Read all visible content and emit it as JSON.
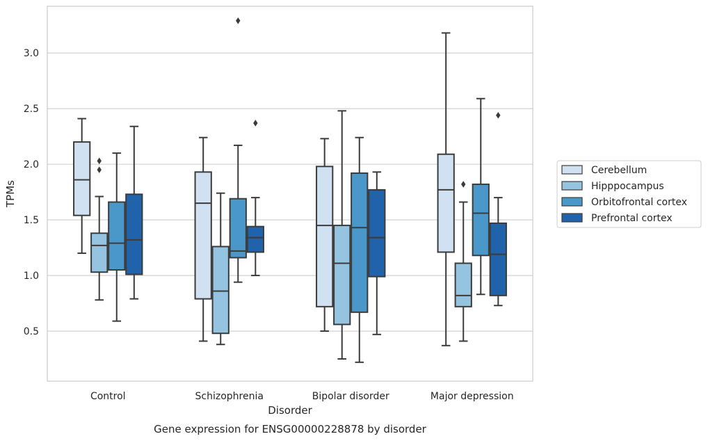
{
  "chart_data": {
    "type": "box",
    "title": "",
    "caption": "Gene expression for ENSG00000228878 by disorder",
    "xlabel": "Disorder",
    "ylabel": "TPMs",
    "ylim": [
      0.05,
      3.42
    ],
    "yticks": [
      0.5,
      1.0,
      1.5,
      2.0,
      2.5,
      3.0
    ],
    "ytick_labels": [
      "0.5",
      "1.0",
      "1.5",
      "2.0",
      "2.5",
      "3.0"
    ],
    "grid": "horizontal",
    "legend_position": "right",
    "categories": [
      "Control",
      "Schizophrenia",
      "Bipolar disorder",
      "Major depression"
    ],
    "series": [
      {
        "name": "Cerebellum",
        "color": "#d0e1f2",
        "boxes": [
          {
            "whislo": 1.2,
            "q1": 1.54,
            "med": 1.86,
            "q3": 2.2,
            "whishi": 2.41,
            "fliers": []
          },
          {
            "whislo": 0.41,
            "q1": 0.79,
            "med": 1.65,
            "q3": 1.93,
            "whishi": 2.24,
            "fliers": []
          },
          {
            "whislo": 0.5,
            "q1": 0.72,
            "med": 1.45,
            "q3": 1.98,
            "whishi": 2.23,
            "fliers": []
          },
          {
            "whislo": 0.37,
            "q1": 1.21,
            "med": 1.77,
            "q3": 2.09,
            "whishi": 3.18,
            "fliers": []
          }
        ]
      },
      {
        "name": "Hipppocampus",
        "color": "#94c4df",
        "boxes": [
          {
            "whislo": 0.78,
            "q1": 1.03,
            "med": 1.27,
            "q3": 1.38,
            "whishi": 1.71,
            "fliers": [
              1.95,
              2.03
            ]
          },
          {
            "whislo": 0.38,
            "q1": 0.48,
            "med": 0.86,
            "q3": 1.26,
            "whishi": 1.74,
            "fliers": []
          },
          {
            "whislo": 0.25,
            "q1": 0.56,
            "med": 1.11,
            "q3": 1.45,
            "whishi": 2.48,
            "fliers": []
          },
          {
            "whislo": 0.41,
            "q1": 0.72,
            "med": 0.82,
            "q3": 1.11,
            "whishi": 1.66,
            "fliers": [
              1.82
            ]
          }
        ]
      },
      {
        "name": "Orbitofrontal cortex",
        "color": "#4a98c9",
        "boxes": [
          {
            "whislo": 0.59,
            "q1": 1.05,
            "med": 1.29,
            "q3": 1.66,
            "whishi": 2.1,
            "fliers": []
          },
          {
            "whislo": 0.94,
            "q1": 1.16,
            "med": 1.22,
            "q3": 1.69,
            "whishi": 2.17,
            "fliers": [
              3.29
            ]
          },
          {
            "whislo": 0.22,
            "q1": 0.67,
            "med": 1.43,
            "q3": 1.92,
            "whishi": 2.24,
            "fliers": []
          },
          {
            "whislo": 0.83,
            "q1": 1.18,
            "med": 1.56,
            "q3": 1.82,
            "whishi": 2.59,
            "fliers": []
          }
        ]
      },
      {
        "name": "Prefrontal cortex",
        "color": "#2163aa",
        "boxes": [
          {
            "whislo": 0.79,
            "q1": 1.01,
            "med": 1.32,
            "q3": 1.73,
            "whishi": 2.34,
            "fliers": []
          },
          {
            "whislo": 1.0,
            "q1": 1.21,
            "med": 1.34,
            "q3": 1.44,
            "whishi": 1.7,
            "fliers": [
              2.37
            ]
          },
          {
            "whislo": 0.47,
            "q1": 0.99,
            "med": 1.34,
            "q3": 1.77,
            "whishi": 1.93,
            "fliers": []
          },
          {
            "whislo": 0.73,
            "q1": 0.82,
            "med": 1.19,
            "q3": 1.47,
            "whishi": 1.7,
            "fliers": [
              2.44
            ]
          }
        ]
      }
    ]
  }
}
